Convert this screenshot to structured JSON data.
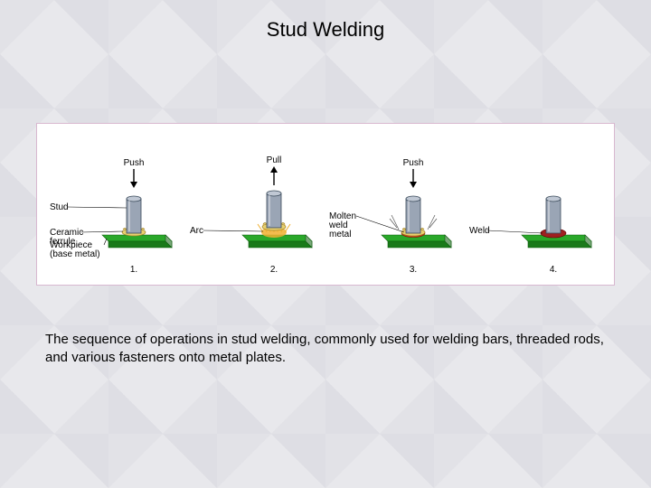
{
  "title": "Stud Welding",
  "caption": "The sequence of operations in stud welding, commonly used for welding bars, threaded rods, and various fasteners onto metal plates.",
  "colors": {
    "stud_fill": "#9aa5b5",
    "stud_stroke": "#3a4a5a",
    "ferrule_fill": "#e8d070",
    "ferrule_stroke": "#a08020",
    "plate_top": "#2aa82a",
    "plate_side": "#1a7a1a",
    "base_side": "#7aa87a",
    "arc_color": "#f0b030",
    "molten_color": "#d04020",
    "weld_color": "#a02020",
    "arrow_color": "#000000",
    "leader_color": "#000000"
  },
  "stages": [
    {
      "number": "1.",
      "action": "Push",
      "arrow": "down",
      "labels": [
        "Stud",
        "Ceramic ferrule",
        "Workpiece (base metal)"
      ],
      "show_ferrule": true,
      "show_arc": false,
      "show_molten": false,
      "show_weld": false,
      "stud_lift": 0
    },
    {
      "number": "2.",
      "action": "Pull",
      "arrow": "up",
      "labels": [
        "Arc"
      ],
      "show_ferrule": true,
      "show_arc": true,
      "show_molten": false,
      "show_weld": false,
      "stud_lift": 6
    },
    {
      "number": "3.",
      "action": "Push",
      "arrow": "down",
      "labels": [
        "Molten weld metal"
      ],
      "show_ferrule": true,
      "show_arc": false,
      "show_molten": true,
      "show_weld": false,
      "stud_lift": 0,
      "sparks": true
    },
    {
      "number": "4.",
      "action": "",
      "arrow": "",
      "labels": [
        "Weld"
      ],
      "show_ferrule": false,
      "show_arc": false,
      "show_molten": false,
      "show_weld": true,
      "stud_lift": 0
    }
  ],
  "layout": {
    "diagram_width": 640,
    "diagram_height": 180,
    "stage_width": 150,
    "stage_height": 140,
    "title_fontsize": 22,
    "caption_fontsize": 15,
    "label_fontsize": 10
  }
}
